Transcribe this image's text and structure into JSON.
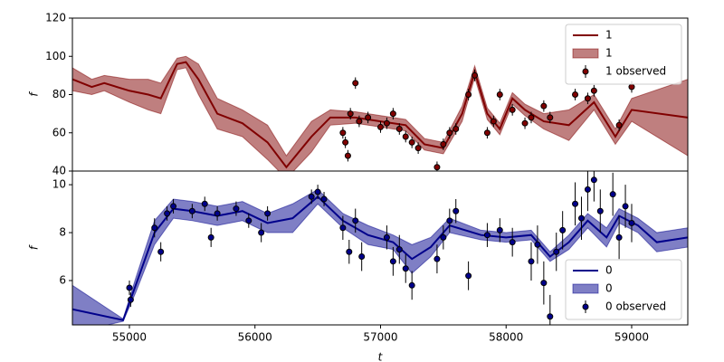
{
  "chart_data": [
    {
      "type": "line",
      "y_label": "f",
      "legend": "upper right",
      "xlim": [
        54546,
        59447
      ],
      "ylim": [
        40,
        120
      ],
      "yticks": [
        40,
        60,
        80,
        100,
        120
      ],
      "series": [
        {
          "name": "1",
          "type": "line",
          "color": "#800000",
          "x": [
            54546,
            54700,
            54800,
            55000,
            55150,
            55250,
            55380,
            55450,
            55550,
            55700,
            55900,
            56100,
            56250,
            56450,
            56600,
            56800,
            57000,
            57200,
            57350,
            57500,
            57650,
            57750,
            57850,
            57950,
            58050,
            58150,
            58300,
            58500,
            58700,
            58870,
            59000,
            59447
          ],
          "values": [
            88,
            84,
            86,
            82,
            80,
            78,
            96,
            97,
            88,
            70,
            65,
            55,
            42,
            58,
            68,
            68,
            66,
            64,
            54,
            52,
            70,
            92,
            70,
            62,
            78,
            72,
            66,
            64,
            76,
            58,
            72,
            68
          ]
        },
        {
          "name": "1",
          "type": "band",
          "color": "#800000",
          "x": [
            54546,
            54700,
            54800,
            55000,
            55150,
            55250,
            55380,
            55450,
            55550,
            55700,
            55900,
            56100,
            56250,
            56450,
            56600,
            56800,
            57000,
            57200,
            57350,
            57500,
            57650,
            57750,
            57850,
            57950,
            58050,
            58150,
            58300,
            58500,
            58700,
            58870,
            59000,
            59447
          ],
          "lower": [
            82,
            80,
            82,
            76,
            72,
            70,
            93,
            94,
            80,
            62,
            58,
            46,
            36,
            50,
            64,
            65,
            63,
            61,
            51,
            49,
            66,
            89,
            67,
            59,
            75,
            69,
            62,
            56,
            72,
            54,
            66,
            48
          ],
          "upper": [
            94,
            88,
            90,
            88,
            88,
            86,
            99,
            100,
            96,
            78,
            72,
            64,
            48,
            66,
            72,
            71,
            69,
            67,
            57,
            55,
            74,
            95,
            73,
            65,
            81,
            75,
            70,
            72,
            80,
            62,
            78,
            88
          ]
        },
        {
          "name": "1 observed",
          "type": "errorbar",
          "color": "#800000",
          "x": [
            56700,
            56720,
            56740,
            56760,
            56800,
            56830,
            56900,
            57000,
            57050,
            57100,
            57150,
            57200,
            57250,
            57300,
            57450,
            57500,
            57550,
            57600,
            57700,
            57750,
            57850,
            57900,
            57950,
            58050,
            58150,
            58200,
            58300,
            58350,
            58550,
            58650,
            58700,
            58900,
            59000
          ],
          "values": [
            60,
            55,
            48,
            70,
            86,
            66,
            68,
            63,
            65,
            70,
            62,
            58,
            55,
            52,
            42,
            54,
            60,
            62,
            80,
            90,
            60,
            66,
            80,
            72,
            65,
            68,
            74,
            68,
            80,
            78,
            82,
            64,
            84
          ],
          "errors": [
            3,
            3,
            3,
            3,
            3,
            3,
            3,
            3,
            3,
            3,
            3,
            3,
            3,
            3,
            3,
            3,
            3,
            3,
            3,
            3,
            3,
            3,
            3,
            3,
            3,
            3,
            3,
            3,
            3,
            3,
            3,
            3,
            3
          ]
        }
      ]
    },
    {
      "type": "line",
      "y_label": "f",
      "x_label": "t",
      "legend": "lower right",
      "xlim": [
        54546,
        59447
      ],
      "ylim": [
        4.15,
        10.57
      ],
      "yticks": [
        6,
        8,
        10
      ],
      "xticks": [
        55000,
        56000,
        57000,
        58000,
        59000
      ],
      "series": [
        {
          "name": "0",
          "type": "line",
          "color": "#00008b",
          "x": [
            54546,
            54950,
            55050,
            55200,
            55350,
            55500,
            55700,
            55900,
            56100,
            56300,
            56500,
            56700,
            56900,
            57100,
            57250,
            57400,
            57550,
            57800,
            58000,
            58200,
            58350,
            58500,
            58650,
            58800,
            58900,
            59050,
            59200,
            59447
          ],
          "values": [
            4.8,
            4.35,
            5.8,
            8.0,
            9.0,
            8.9,
            8.7,
            8.9,
            8.4,
            8.6,
            9.5,
            8.5,
            7.9,
            7.6,
            6.9,
            7.4,
            8.3,
            7.9,
            7.8,
            7.9,
            7.0,
            7.6,
            8.5,
            7.8,
            8.7,
            8.3,
            7.6,
            7.8
          ]
        },
        {
          "name": "0",
          "type": "band",
          "color": "#00008b",
          "x": [
            54546,
            54950,
            55050,
            55200,
            55350,
            55500,
            55700,
            55900,
            56100,
            56300,
            56500,
            56700,
            56900,
            57100,
            57250,
            57400,
            57550,
            57800,
            58000,
            58200,
            58350,
            58500,
            58650,
            58800,
            58900,
            59050,
            59200,
            59447
          ],
          "lower": [
            3.8,
            4.3,
            5.5,
            7.5,
            8.6,
            8.5,
            8.3,
            8.5,
            8.0,
            8.0,
            9.2,
            8.2,
            7.5,
            7.3,
            6.3,
            7.0,
            8.0,
            7.7,
            7.6,
            7.7,
            6.8,
            7.3,
            8.2,
            7.4,
            8.4,
            8.0,
            7.2,
            7.4
          ],
          "upper": [
            5.8,
            4.4,
            6.1,
            8.5,
            9.4,
            9.3,
            9.1,
            9.3,
            8.8,
            9.2,
            9.8,
            8.8,
            8.3,
            7.9,
            7.5,
            7.8,
            8.6,
            8.1,
            8.0,
            8.1,
            7.2,
            7.9,
            8.8,
            8.2,
            9.0,
            8.6,
            8.0,
            8.2
          ]
        },
        {
          "name": "0 observed",
          "type": "errorbar",
          "color": "#00008b",
          "x": [
            55000,
            55010,
            55200,
            55250,
            55300,
            55350,
            55500,
            55600,
            55650,
            55700,
            55850,
            55950,
            56050,
            56100,
            56450,
            56500,
            56550,
            56700,
            56750,
            56800,
            56850,
            57050,
            57100,
            57150,
            57200,
            57250,
            57450,
            57500,
            57550,
            57600,
            57700,
            57850,
            57950,
            58050,
            58200,
            58250,
            58300,
            58350,
            58400,
            58450,
            58550,
            58600,
            58650,
            58700,
            58750,
            58850,
            58900,
            58950,
            59000
          ],
          "values": [
            5.7,
            5.2,
            8.2,
            7.2,
            8.8,
            9.1,
            8.9,
            9.2,
            7.8,
            8.8,
            9.0,
            8.5,
            8.0,
            8.8,
            9.5,
            9.7,
            9.4,
            8.2,
            7.2,
            8.5,
            7.0,
            7.8,
            6.8,
            7.3,
            6.5,
            5.8,
            6.9,
            7.8,
            8.5,
            8.9,
            6.2,
            7.9,
            8.1,
            7.6,
            6.8,
            7.5,
            5.9,
            4.5,
            7.2,
            8.1,
            9.2,
            8.6,
            9.8,
            10.2,
            8.9,
            9.6,
            7.8,
            9.1,
            8.4
          ],
          "errors": [
            0.3,
            0.3,
            0.4,
            0.4,
            0.3,
            0.3,
            0.3,
            0.3,
            0.4,
            0.3,
            0.3,
            0.3,
            0.4,
            0.3,
            0.3,
            0.3,
            0.3,
            0.5,
            0.5,
            0.5,
            0.6,
            0.5,
            0.6,
            0.6,
            0.6,
            0.6,
            0.6,
            0.5,
            0.5,
            0.5,
            0.6,
            0.5,
            0.5,
            0.6,
            0.8,
            0.8,
            0.9,
            0.9,
            0.8,
            0.8,
            0.9,
            0.9,
            0.9,
            0.9,
            0.9,
            0.9,
            0.9,
            0.9,
            0.8
          ]
        }
      ]
    }
  ]
}
